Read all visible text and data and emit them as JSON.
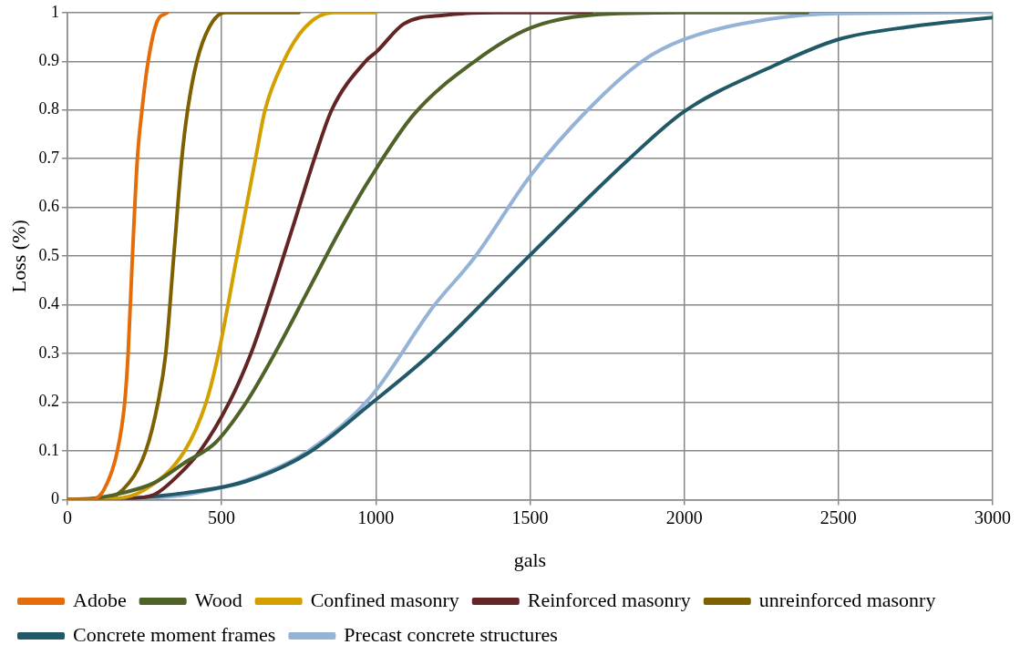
{
  "chart_data": {
    "type": "line",
    "xlabel": "gals",
    "ylabel": "Loss (%)",
    "xlim": [
      0,
      3000
    ],
    "xticks": [
      0,
      500,
      1000,
      1500,
      2000,
      2500,
      3000
    ],
    "ylim": [
      0,
      1
    ],
    "yticks": [
      0,
      0.1,
      0.2,
      0.3,
      0.4,
      0.5,
      0.6,
      0.7,
      0.8,
      0.9,
      1
    ],
    "grid": true,
    "legend": "bottom",
    "marker": "none",
    "line_style": "solid",
    "series": [
      {
        "name": "Adobe",
        "color": "#e46c0a",
        "x": [
          0,
          78,
          118,
          162,
          186,
          197,
          211,
          227,
          242,
          262,
          290,
          324
        ],
        "values": [
          0,
          0,
          0.02,
          0.1,
          0.2,
          0.3,
          0.5,
          0.7,
          0.8,
          0.9,
          0.98,
          1
        ]
      },
      {
        "name": "Wood",
        "color": "#4f6228",
        "x": [
          0,
          100,
          179,
          279,
          380,
          480,
          580,
          681,
          781,
          881,
          982,
          1122,
          1321,
          1500,
          1700,
          2000,
          2400
        ],
        "values": [
          0,
          0.004,
          0.014,
          0.034,
          0.076,
          0.117,
          0.2,
          0.31,
          0.43,
          0.55,
          0.66,
          0.79,
          0.9,
          0.968,
          0.995,
          1,
          1
        ]
      },
      {
        "name": "Confined masonry",
        "color": "#d4a000",
        "x": [
          0,
          150,
          249,
          380,
          450,
          490,
          550,
          610,
          641,
          701,
          771,
          861,
          1000
        ],
        "values": [
          0,
          0.002,
          0.02,
          0.1,
          0.2,
          0.3,
          0.5,
          0.7,
          0.8,
          0.9,
          0.97,
          1,
          1
        ]
      },
      {
        "name": "Reinforced masonry",
        "color": "#632523",
        "x": [
          0,
          180,
          279,
          359,
          430,
          525,
          595,
          650,
          701,
          751,
          801,
          857,
          967,
          1003,
          1091,
          1226,
          1400,
          1700
        ],
        "values": [
          0,
          0.002,
          0.01,
          0.05,
          0.1,
          0.2,
          0.3,
          0.4,
          0.5,
          0.6,
          0.7,
          0.8,
          0.9,
          0.92,
          0.977,
          0.995,
          1,
          1
        ]
      },
      {
        "name": "unreinforced masonry",
        "color": "#7f6000",
        "x": [
          0,
          100,
          179,
          254,
          294,
          319,
          345,
          371,
          390,
          420,
          460,
          510,
          751
        ],
        "values": [
          0,
          0.002,
          0.02,
          0.1,
          0.2,
          0.3,
          0.5,
          0.7,
          0.8,
          0.9,
          0.97,
          1,
          1
        ]
      },
      {
        "name": "Concrete moment frames",
        "color": "#215968",
        "x": [
          0,
          200,
          380,
          580,
          781,
          982,
          1186,
          1500,
          1822,
          2000,
          2270,
          2500,
          2744,
          3000
        ],
        "values": [
          0,
          0.003,
          0.014,
          0.038,
          0.096,
          0.196,
          0.304,
          0.502,
          0.7,
          0.797,
          0.885,
          0.945,
          0.972,
          0.99
        ]
      },
      {
        "name": "Precast concrete structures",
        "color": "#95b3d7",
        "x": [
          0,
          179,
          380,
          580,
          781,
          982,
          1186,
          1321,
          1500,
          1687,
          1863,
          2000,
          2270,
          2500,
          3000
        ],
        "values": [
          0,
          0.002,
          0.01,
          0.04,
          0.1,
          0.21,
          0.396,
          0.498,
          0.664,
          0.8,
          0.9,
          0.945,
          0.986,
          0.998,
          1
        ]
      }
    ]
  }
}
